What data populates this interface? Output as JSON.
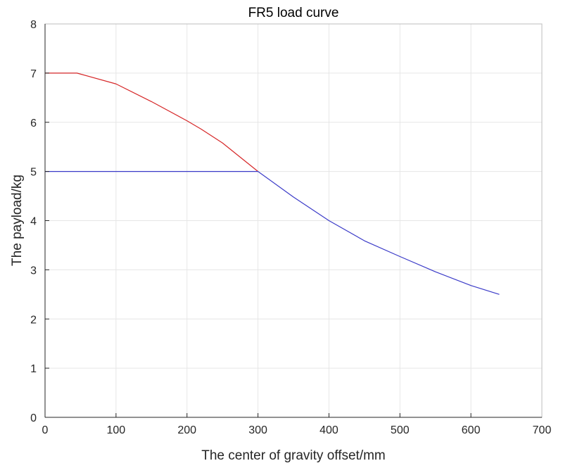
{
  "chart_data": {
    "type": "line",
    "title": "FR5 load curve",
    "xlabel": "The center of gravity offset/mm",
    "ylabel": "The payload/kg",
    "xlim": [
      0,
      700
    ],
    "ylim": [
      0,
      8
    ],
    "xticks": [
      0,
      100,
      200,
      300,
      400,
      500,
      600,
      700
    ],
    "yticks": [
      0,
      1,
      2,
      3,
      4,
      5,
      6,
      7,
      8
    ],
    "grid": true,
    "series": [
      {
        "color": "#d62728",
        "x": [
          0,
          45,
          100,
          150,
          200,
          220,
          250,
          300
        ],
        "y": [
          7,
          7,
          6.78,
          6.42,
          6.03,
          5.86,
          5.58,
          5.0
        ]
      },
      {
        "color": "#3b3bc8",
        "x": [
          0,
          300,
          350,
          400,
          450,
          500,
          550,
          600,
          640
        ],
        "y": [
          5,
          5,
          4.48,
          4.0,
          3.59,
          3.27,
          2.96,
          2.68,
          2.5
        ]
      }
    ]
  }
}
